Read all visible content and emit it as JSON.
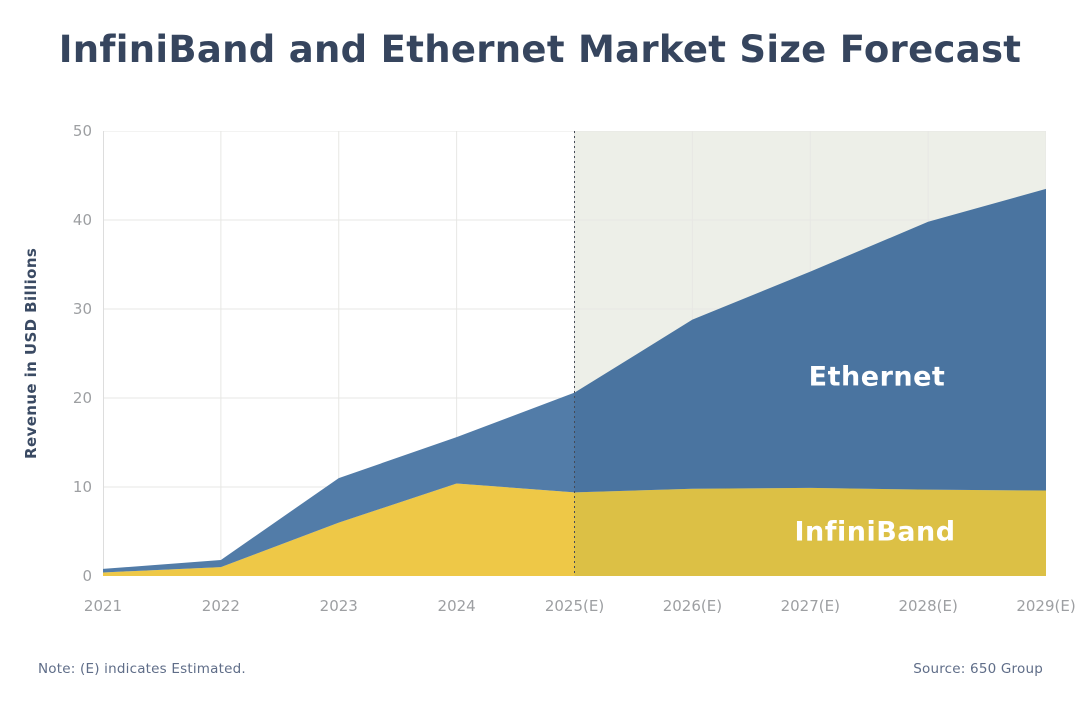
{
  "title": "InfiniBand and Ethernet Market Size Forecast",
  "footer": {
    "note": "Note: (E) indicates Estimated.",
    "source": "Source: 650 Group"
  },
  "chart_data": {
    "type": "area",
    "stacked": true,
    "title": "InfiniBand and Ethernet Market Size Forecast",
    "xlabel": "",
    "ylabel": "Revenue in USD Billions",
    "categories": [
      "2021",
      "2022",
      "2023",
      "2024",
      "2025(E)",
      "2026(E)",
      "2027(E)",
      "2028(E)",
      "2029(E)"
    ],
    "y_ticks": [
      0,
      10,
      20,
      30,
      40,
      50
    ],
    "ylim": [
      0,
      50
    ],
    "grid": true,
    "legend_position": "labels-inside-areas",
    "forecast_start_index": 4,
    "forecast_band_color": "#edefe8",
    "divider_line_color": "#454b57",
    "series": [
      {
        "name": "InfiniBand",
        "values": [
          0.4,
          1.0,
          6.0,
          10.4,
          9.4,
          9.8,
          9.9,
          9.7,
          9.6
        ],
        "color": "#eec847",
        "forecast_color": "#dcc045"
      },
      {
        "name": "Ethernet",
        "values": [
          0.4,
          0.8,
          5.0,
          5.2,
          11.2,
          19.0,
          24.3,
          30.1,
          33.9
        ],
        "color": "#527ca8",
        "forecast_color": "#4a74a0"
      }
    ],
    "annotations": [
      "Dotted vertical divider at 2025(E) separating actuals from estimates",
      "Shaded band over estimated years 2025(E)-2029(E)"
    ]
  },
  "text_colors": {
    "title": "#36455e",
    "axis_title": "#3a4a63",
    "tick": "#9d9fa2",
    "footer": "#5f6d88",
    "series_label": "#ffffff"
  }
}
